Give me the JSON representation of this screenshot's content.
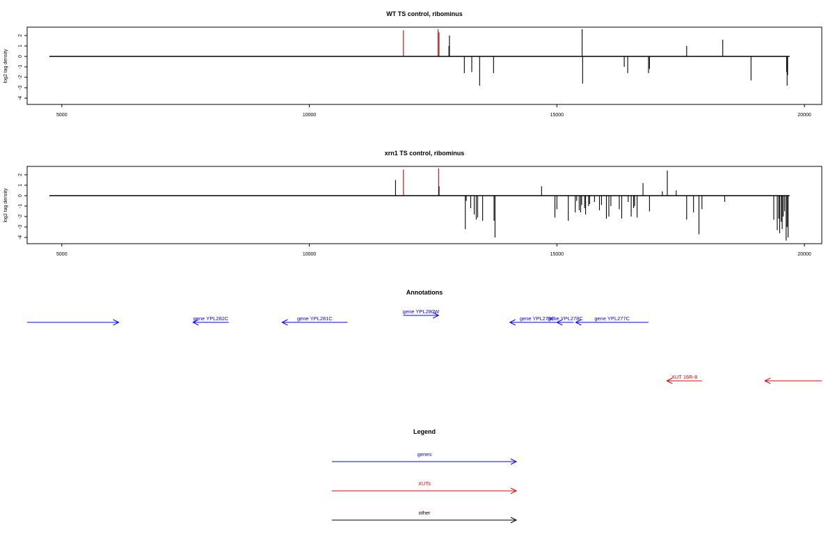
{
  "chart_data": [
    {
      "type": "bar",
      "title": "WT TS control, ribominus",
      "ylabel": "log2 tag density",
      "xlim": [
        4300,
        20350
      ],
      "ylim": [
        -4.6,
        2.8
      ],
      "xticks": [
        5000,
        10000,
        15000,
        20000
      ],
      "yticks": [
        -4,
        -3,
        -2,
        -1,
        0,
        1,
        2
      ],
      "baseline": {
        "x": [
          4750,
          19700
        ]
      },
      "series": [
        {
          "color": "#cc0000",
          "x": [
            11900,
            12600,
            12620
          ],
          "values": [
            2.5,
            2.6,
            2.3
          ]
        },
        {
          "color": "#000000",
          "x": [
            12820,
            12830,
            13130,
            13280,
            13440,
            13720,
            15510,
            15520,
            16360,
            16430,
            16850,
            16870,
            17620,
            18350,
            18920,
            19640,
            19650,
            19660
          ],
          "values": [
            1.0,
            2.0,
            -1.6,
            -1.5,
            -2.8,
            -1.6,
            2.6,
            -2.6,
            -1.0,
            -1.6,
            -1.6,
            -1.2,
            1.0,
            1.6,
            -2.3,
            -1.5,
            -2.8,
            -1.8
          ]
        }
      ]
    },
    {
      "type": "bar",
      "title": "xrn1 TS control, ribominus",
      "ylabel": "log2 tag density",
      "xlim": [
        4300,
        20350
      ],
      "ylim": [
        -4.6,
        2.8
      ],
      "xticks": [
        5000,
        10000,
        15000,
        20000
      ],
      "yticks": [
        -4,
        -3,
        -2,
        -1,
        0,
        1,
        2
      ],
      "baseline": {
        "x": [
          4750,
          19700
        ]
      },
      "series": [
        {
          "color": "#cc0000",
          "x": [
            11900,
            12610
          ],
          "values": [
            2.5,
            2.6
          ]
        },
        {
          "color": "#000000",
          "x": [
            11740,
            12620,
            13150,
            13170,
            13260,
            13330,
            13370,
            13400,
            13500,
            13730,
            13750,
            14690,
            14960,
            15000,
            15230,
            15370,
            15400,
            15450,
            15480,
            15500,
            15560,
            15580,
            15640,
            15660,
            15760,
            15860,
            15900,
            16000,
            16050,
            16090,
            16260,
            16310,
            16440,
            16500,
            16550,
            16570,
            16620,
            16740,
            16870,
            17130,
            17230,
            17410,
            17620,
            17760,
            17870,
            17930,
            18390,
            19380,
            19450,
            19480,
            19500,
            19530,
            19550,
            19570,
            19600,
            19630,
            19650,
            19670
          ],
          "values": [
            1.5,
            0.9,
            -3.2,
            -0.5,
            -1.2,
            -1.8,
            -2.3,
            -2.1,
            -2.4,
            -2.4,
            -4.0,
            0.9,
            -2.1,
            -1.3,
            -2.4,
            -1.6,
            -0.5,
            -1.4,
            -1.6,
            -0.9,
            -1.2,
            -1.8,
            -1.0,
            -0.8,
            -0.6,
            -1.4,
            -0.9,
            -2.2,
            -2.0,
            -1.0,
            -1.3,
            -2.2,
            -0.6,
            -2.0,
            -1.2,
            -1.0,
            -2.1,
            1.2,
            -1.5,
            0.4,
            2.4,
            0.5,
            -2.3,
            -1.6,
            -3.7,
            -1.3,
            -0.6,
            -2.3,
            -3.3,
            -2.2,
            -3.6,
            -2.5,
            -3.2,
            -2.0,
            -1.5,
            -4.3,
            -3.0,
            -4.0
          ]
        }
      ]
    }
  ],
  "annotations": {
    "title": "Annotations",
    "features": [
      {
        "label": "",
        "start": 4300,
        "end": 6150,
        "strand": "+",
        "color": "#0000ff",
        "row": 1
      },
      {
        "label": "gene YPL282C",
        "start": 7650,
        "end": 8370,
        "strand": "-",
        "color": "#0000ff",
        "row": 1
      },
      {
        "label": "gene YPL281C",
        "start": 9450,
        "end": 10770,
        "strand": "-",
        "color": "#0000ff",
        "row": 1
      },
      {
        "label": "gene YPL280W",
        "start": 11900,
        "end": 12610,
        "strand": "+",
        "color": "#0000ff",
        "row": 0
      },
      {
        "label": "gene YPL279C",
        "start": 14050,
        "end": 15160,
        "strand": "-",
        "color": "#0000ff",
        "row": 1
      },
      {
        "label": "gene YPL278C",
        "start": 15000,
        "end": 15340,
        "strand": "-",
        "color": "#0000ff",
        "row": 1
      },
      {
        "label": "gene YPL277C",
        "start": 15380,
        "end": 16850,
        "strand": "-",
        "color": "#0000ff",
        "row": 1
      },
      {
        "label": "XUT 16R-8",
        "start": 17220,
        "end": 17930,
        "strand": "-",
        "color": "#e00000",
        "row": 2
      },
      {
        "label": "",
        "start": 19200,
        "end": 20350,
        "strand": "-",
        "color": "#e00000",
        "row": 2
      }
    ]
  },
  "legend": {
    "title": "Legend",
    "items": [
      {
        "label": "genes",
        "color": "#0000ff"
      },
      {
        "label": "XUTs",
        "color": "#e00000"
      },
      {
        "label": "other",
        "color": "#000000"
      }
    ]
  }
}
